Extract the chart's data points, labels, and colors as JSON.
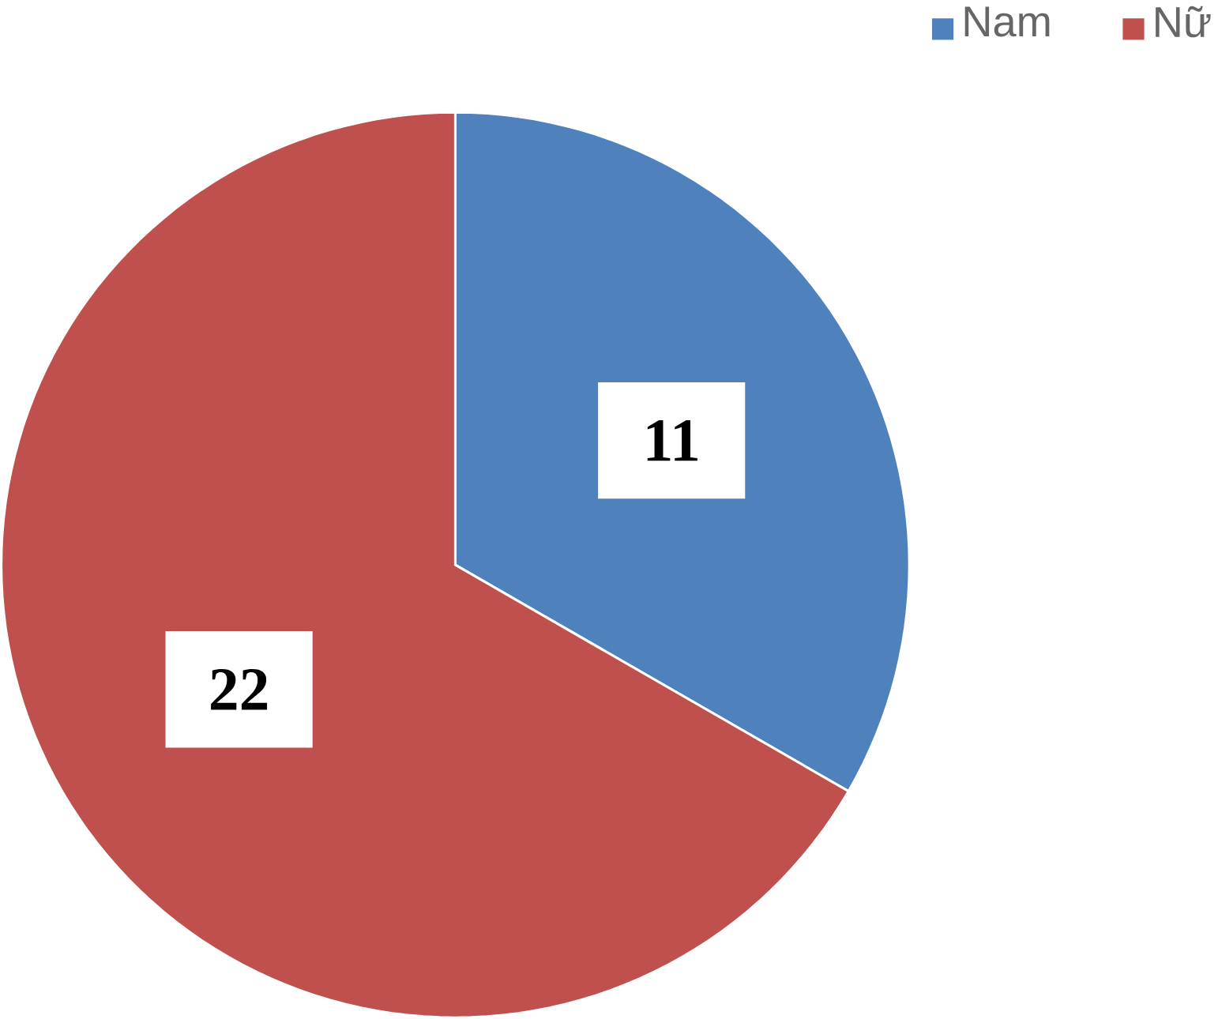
{
  "chart_data": {
    "type": "pie",
    "categories": [
      "Nam",
      "Nữ"
    ],
    "values": [
      11,
      22
    ],
    "colors": [
      "#4f81bd",
      "#c0504d"
    ],
    "data_labels": true,
    "legend": "top right"
  }
}
